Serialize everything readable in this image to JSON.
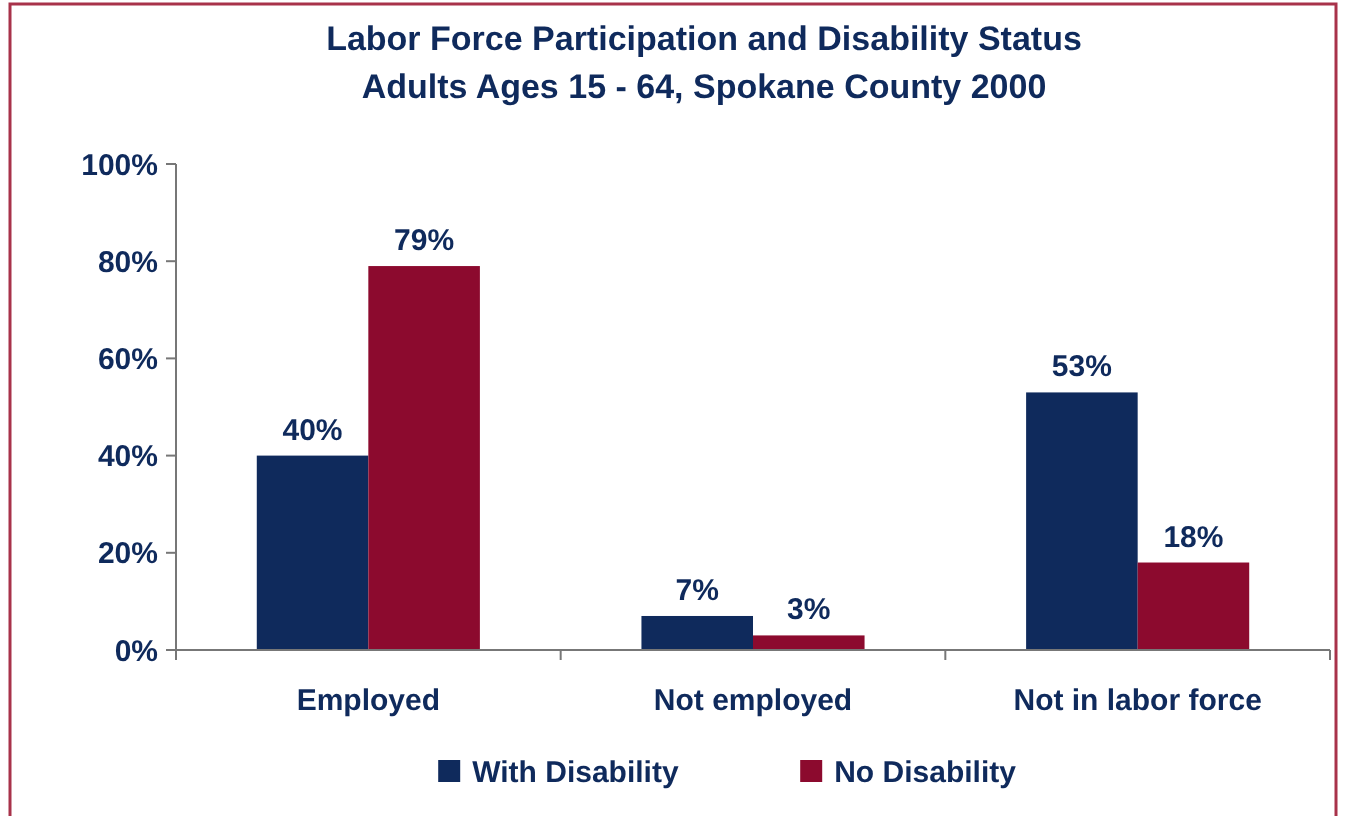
{
  "chart_data": {
    "type": "bar",
    "title": "Labor Force Participation and Disability Status\nAdults Ages 15 - 64, Spokane County 2000",
    "categories": [
      "Employed",
      "Not employed",
      "Not in labor force"
    ],
    "series": [
      {
        "name": "With Disability",
        "color": "#0f2a5c",
        "values": [
          40,
          7,
          53
        ],
        "value_labels": [
          "40%",
          "7%",
          "53%"
        ]
      },
      {
        "name": "No Disability",
        "color": "#8c0a2e",
        "values": [
          79,
          3,
          18
        ],
        "value_labels": [
          "79%",
          "3%",
          "18%"
        ]
      }
    ],
    "ylim": [
      0,
      100
    ],
    "yticks": [
      {
        "value": 0,
        "label": "0%"
      },
      {
        "value": 20,
        "label": "20%"
      },
      {
        "value": 40,
        "label": "40%"
      },
      {
        "value": 60,
        "label": "60%"
      },
      {
        "value": 80,
        "label": "80%"
      },
      {
        "value": 100,
        "label": "100%"
      }
    ],
    "grid": false,
    "legend": "bottom"
  }
}
